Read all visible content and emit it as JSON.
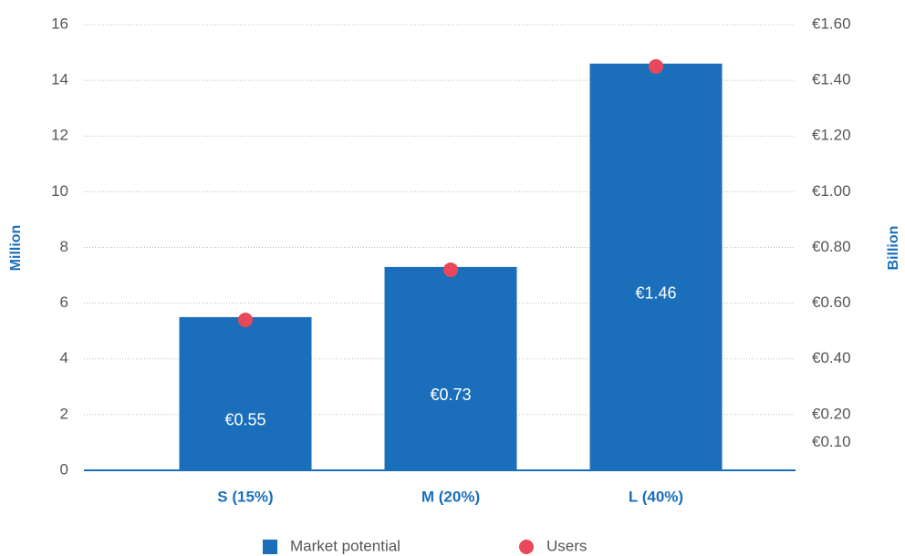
{
  "chart_data": {
    "type": "bar",
    "categories": [
      "S (15%)",
      "M (20%)",
      "L (40%)"
    ],
    "series": [
      {
        "name": "Market potential",
        "color": "#1b6fba",
        "axis": "y2",
        "values": [
          0.55,
          0.73,
          1.46
        ],
        "value_labels": [
          "€0.55",
          "€0.73",
          "€1.46"
        ]
      },
      {
        "name": "Users",
        "color": "#e8485a",
        "type": "scatter",
        "values": [
          5.4,
          7.2,
          14.5
        ]
      }
    ],
    "ylabel": "Million",
    "y2label": "Billion",
    "ylim": [
      0,
      16
    ],
    "yticks": [
      0,
      2,
      4,
      6,
      8,
      10,
      12,
      14,
      16
    ],
    "y2lim": [
      0,
      1.6
    ],
    "y2ticks": [
      {
        "value": 0.1,
        "label": "€0.10"
      },
      {
        "value": 0.2,
        "label": "€0.20"
      },
      {
        "value": 0.4,
        "label": "€0.40"
      },
      {
        "value": 0.6,
        "label": "€0.60"
      },
      {
        "value": 0.8,
        "label": "€0.80"
      },
      {
        "value": 1.0,
        "label": "€1.00"
      },
      {
        "value": 1.2,
        "label": "€1.20"
      },
      {
        "value": 1.4,
        "label": "€1.40"
      },
      {
        "value": 1.6,
        "label": "€1.60"
      }
    ],
    "grid": true,
    "legend": "bottom"
  }
}
